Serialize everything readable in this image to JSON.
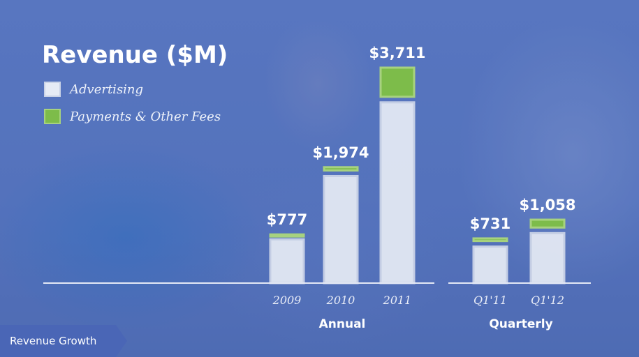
{
  "caption": {
    "label": "Revenue Growth"
  },
  "chart_data": {
    "type": "bar",
    "stacked": true,
    "title": "Revenue ($M)",
    "legend": {
      "placement": "top-left",
      "entries": [
        {
          "label": "Advertising",
          "color": "#e6ebf5"
        },
        {
          "label": "Payments & Other Fees",
          "color": "#7dbc4a"
        }
      ]
    },
    "grid": false,
    "ylim": [
      0,
      3711
    ],
    "groups": [
      {
        "label": "Annual",
        "categories": [
          "2009",
          "2010",
          "2011"
        ],
        "totals": [
          "$777",
          "$1,974",
          "$3,711"
        ],
        "series": [
          {
            "name": "Advertising",
            "values": [
              764,
              1868,
              3154
            ]
          },
          {
            "name": "Payments & Other Fees",
            "values": [
              13,
              106,
              557
            ]
          }
        ]
      },
      {
        "label": "Quarterly",
        "categories": [
          "Q1'11",
          "Q1'12"
        ],
        "totals": [
          "$731",
          "$1,058"
        ],
        "series": [
          {
            "name": "Advertising",
            "values": [
              637,
              872
            ]
          },
          {
            "name": "Payments & Other Fees",
            "values": [
              94,
              186
            ]
          }
        ]
      }
    ]
  }
}
